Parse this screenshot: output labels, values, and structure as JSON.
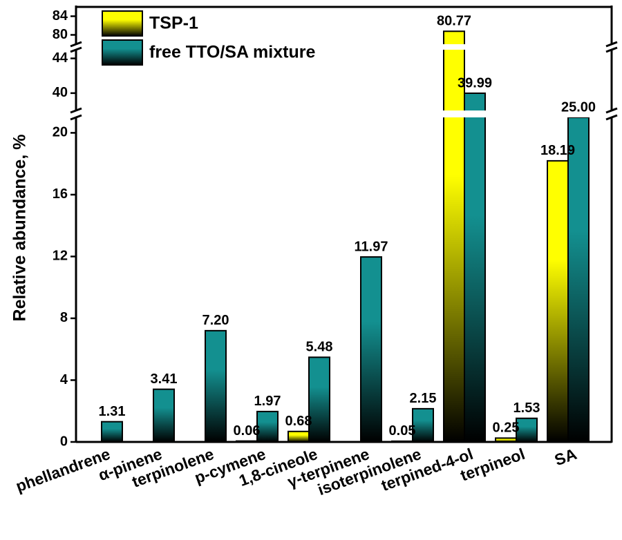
{
  "chart_data": {
    "type": "bar",
    "y_label": "Relative abundance, %",
    "categories": [
      "phellandrene",
      "α-pinene",
      "terpinolene",
      "p-cymene",
      "1,8-cineole",
      "γ-terpinene",
      "isoterpinolene",
      "terpined-4-ol",
      "terpineol",
      "SA"
    ],
    "series": [
      {
        "name": "TSP-1",
        "color": "#ffff00",
        "values": [
          null,
          null,
          null,
          0.06,
          0.68,
          null,
          0.05,
          80.77,
          0.25,
          18.19
        ],
        "value_labels": [
          null,
          null,
          null,
          "0.06",
          "0.68",
          null,
          "0.05",
          "80.77",
          "0.25",
          "18.19"
        ]
      },
      {
        "name": "free TTO/SA mixture",
        "color": "#139090",
        "values": [
          1.31,
          3.41,
          7.2,
          1.97,
          5.48,
          11.97,
          2.15,
          39.99,
          1.53,
          25
        ],
        "value_labels": [
          "1.31",
          "3.41",
          "7.20",
          "1.97",
          "5.48",
          "11.97",
          "2.15",
          "39.99",
          "1.53",
          "25.00"
        ]
      }
    ],
    "y_segments": [
      {
        "ylim": [
          0,
          21
        ],
        "yticks": [
          0,
          4,
          8,
          12,
          16,
          20
        ]
      },
      {
        "ylim": [
          38,
          45
        ],
        "yticks": [
          40,
          44
        ]
      },
      {
        "ylim": [
          78,
          86
        ],
        "yticks": [
          80,
          84
        ]
      }
    ],
    "legend": "upper left"
  }
}
